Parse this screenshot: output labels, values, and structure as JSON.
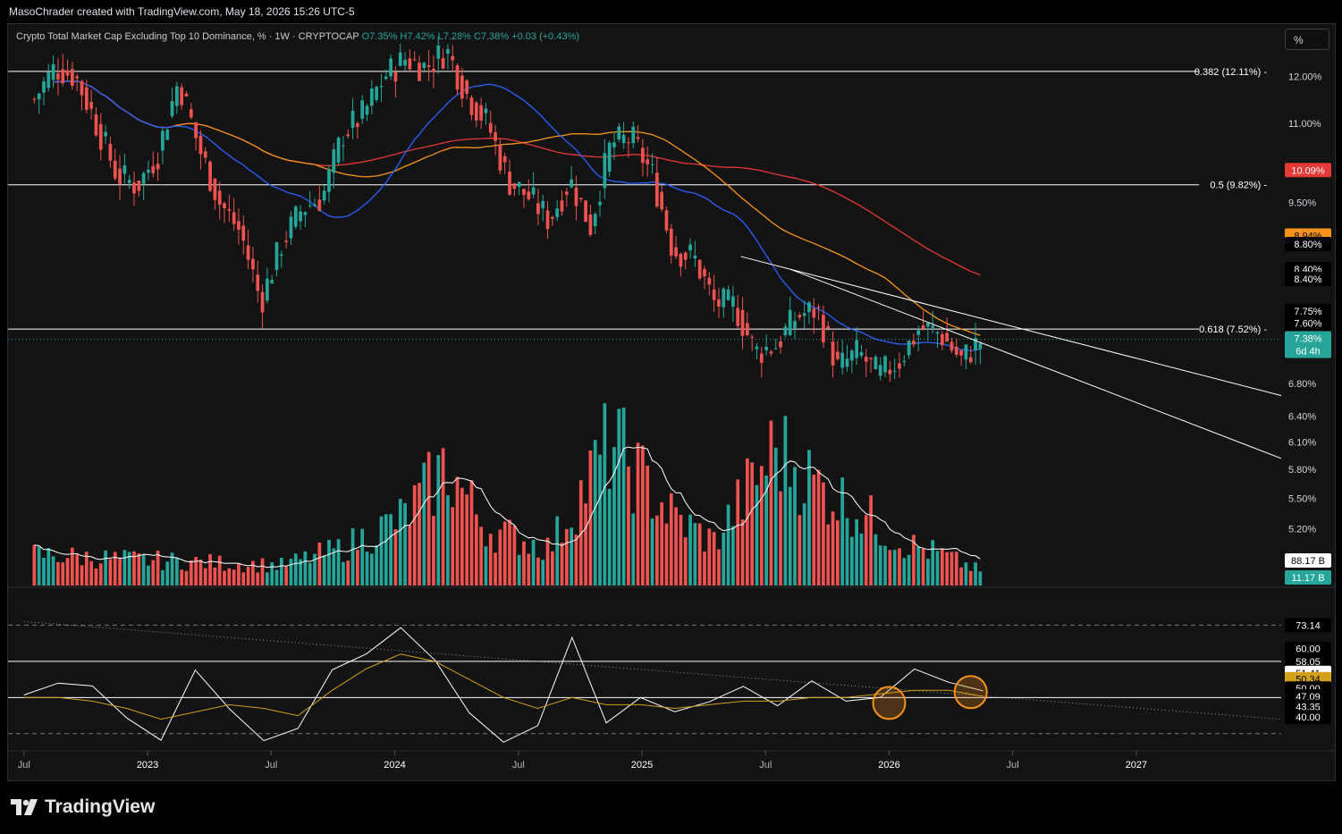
{
  "header": {
    "text": "MasoChrader created with TradingView.com, May 18, 2026 15:26 UTC-5"
  },
  "symbol_line": {
    "name": "Crypto Total Market Cap Excluding Top 10 Dominance, % · 1W · CRYPTOCAP",
    "open": "O7.35%",
    "high": "H7.42%",
    "low": "L7.28%",
    "close": "C7.38%",
    "change": "+0.03 (+0.43%)"
  },
  "toolbar": {
    "scale_button": "%"
  },
  "brand": {
    "name": "TradingView"
  },
  "colors": {
    "up": "#26a69a",
    "down": "#ef5350",
    "ma_blue": "#2962ff",
    "ma_orange": "#f7931a",
    "ma_red": "#e53935",
    "volume_ma": "#ffffff",
    "rsi": "#ffffff",
    "rsi_ma": "#d4a017",
    "highlight_circle": "#f7931a"
  },
  "chart_data": [
    {
      "type": "candlestick",
      "title": "Crypto Total Market Cap Excluding Top 10 Dominance, % · 1W · CRYPTOCAP",
      "y_unit": "%",
      "y_scale": "log",
      "ylim": [
        5.0,
        13.0
      ],
      "x_ticks": [
        "Jul",
        "2023",
        "Jul",
        "2024",
        "Jul",
        "2025",
        "Jul",
        "2026",
        "Jul",
        "2027"
      ],
      "y_ticks": [
        "12.00%",
        "11.00%",
        "9.50%",
        "6.80%",
        "6.40%",
        "6.10%",
        "5.80%",
        "5.50%",
        "5.20%"
      ],
      "price_labels": [
        "8.80%",
        "8.40%",
        "8.40%",
        "7.75%",
        "7.60%"
      ],
      "countdown": "6d 4h",
      "last_close": "7.38%",
      "fib_levels": [
        {
          "label": "0.382 (12.11%)",
          "value": 12.11
        },
        {
          "label": "0.5 (9.82%)",
          "value": 9.82
        },
        {
          "label": "0.618 (7.52%)",
          "value": 7.52
        }
      ],
      "moving_averages": [
        {
          "color_key": "ma_red",
          "last": "10.09%"
        },
        {
          "color_key": "ma_orange",
          "last": "8.94%"
        },
        {
          "color_key": "ma_blue",
          "last": "7.73%"
        }
      ],
      "close_series": [
        {
          "x": "2022-07",
          "y": 11.5
        },
        {
          "x": "2022-08",
          "y": 12.2
        },
        {
          "x": "2022-09",
          "y": 12.0
        },
        {
          "x": "2022-10",
          "y": 11.0
        },
        {
          "x": "2022-11",
          "y": 10.0
        },
        {
          "x": "2022-12",
          "y": 9.8
        },
        {
          "x": "2023-01",
          "y": 10.4
        },
        {
          "x": "2023-02",
          "y": 11.9
        },
        {
          "x": "2023-03",
          "y": 10.5
        },
        {
          "x": "2023-04",
          "y": 9.5
        },
        {
          "x": "2023-05",
          "y": 9.0
        },
        {
          "x": "2023-06",
          "y": 7.9
        },
        {
          "x": "2023-07",
          "y": 8.8
        },
        {
          "x": "2023-08",
          "y": 9.4
        },
        {
          "x": "2023-09",
          "y": 9.6
        },
        {
          "x": "2023-10",
          "y": 10.8
        },
        {
          "x": "2023-11",
          "y": 11.2
        },
        {
          "x": "2023-12",
          "y": 12.0
        },
        {
          "x": "2024-01",
          "y": 12.4
        },
        {
          "x": "2024-02",
          "y": 12.2
        },
        {
          "x": "2024-03",
          "y": 12.6
        },
        {
          "x": "2024-04",
          "y": 11.6
        },
        {
          "x": "2024-05",
          "y": 11.0
        },
        {
          "x": "2024-06",
          "y": 9.9
        },
        {
          "x": "2024-07",
          "y": 9.6
        },
        {
          "x": "2024-08",
          "y": 9.2
        },
        {
          "x": "2024-09",
          "y": 9.9
        },
        {
          "x": "2024-10",
          "y": 9.1
        },
        {
          "x": "2024-11",
          "y": 10.6
        },
        {
          "x": "2024-12",
          "y": 10.7
        },
        {
          "x": "2025-01",
          "y": 10.0
        },
        {
          "x": "2025-02",
          "y": 8.7
        },
        {
          "x": "2025-03",
          "y": 8.6
        },
        {
          "x": "2025-04",
          "y": 7.9
        },
        {
          "x": "2025-05",
          "y": 7.85
        },
        {
          "x": "2025-06",
          "y": 7.2
        },
        {
          "x": "2025-07",
          "y": 7.3
        },
        {
          "x": "2025-08",
          "y": 7.7
        },
        {
          "x": "2025-09",
          "y": 7.8
        },
        {
          "x": "2025-10",
          "y": 7.0
        },
        {
          "x": "2025-11",
          "y": 7.2
        },
        {
          "x": "2025-12",
          "y": 6.9
        },
        {
          "x": "2026-01",
          "y": 7.1
        },
        {
          "x": "2026-02",
          "y": 7.55
        },
        {
          "x": "2026-03",
          "y": 7.45
        },
        {
          "x": "2026-04",
          "y": 7.1
        },
        {
          "x": "2026-05",
          "y": 7.38
        }
      ]
    },
    {
      "type": "bar",
      "title": "Volume",
      "last_values": [
        "88.17 B",
        "11.17 B"
      ],
      "series": [
        {
          "x": "2022-07",
          "y": 25
        },
        {
          "x": "2022-10",
          "y": 22
        },
        {
          "x": "2023-01",
          "y": 20
        },
        {
          "x": "2023-04",
          "y": 18
        },
        {
          "x": "2023-07",
          "y": 16
        },
        {
          "x": "2023-10",
          "y": 30
        },
        {
          "x": "2024-01",
          "y": 55
        },
        {
          "x": "2024-03",
          "y": 95
        },
        {
          "x": "2024-05",
          "y": 45
        },
        {
          "x": "2024-08",
          "y": 30
        },
        {
          "x": "2024-11",
          "y": 115
        },
        {
          "x": "2024-12",
          "y": 95
        },
        {
          "x": "2025-02",
          "y": 55
        },
        {
          "x": "2025-04",
          "y": 35
        },
        {
          "x": "2025-06",
          "y": 85
        },
        {
          "x": "2025-07",
          "y": 110
        },
        {
          "x": "2025-09",
          "y": 80
        },
        {
          "x": "2025-11",
          "y": 60
        },
        {
          "x": "2026-01",
          "y": 35
        },
        {
          "x": "2026-03",
          "y": 25
        },
        {
          "x": "2026-05",
          "y": 11.17
        }
      ]
    },
    {
      "type": "line",
      "title": "RSI",
      "y_ticks": [
        "73.14",
        "60.00",
        "58.05",
        "51.41",
        "50.34",
        "50.00",
        "47.09",
        "43.35",
        "40.00"
      ],
      "levels": [
        70,
        60,
        50,
        40,
        30
      ],
      "series": [
        {
          "name": "RSI",
          "values": [
            48,
            55,
            52,
            44,
            37,
            56,
            47,
            38,
            44,
            60,
            64,
            72,
            58,
            48,
            40,
            44,
            65,
            42,
            50,
            46,
            51,
            55,
            46,
            52,
            48,
            53,
            58,
            55,
            51.41
          ]
        },
        {
          "name": "RSI MA",
          "values": [
            50,
            50,
            49,
            47,
            44,
            46,
            48,
            47,
            45,
            52,
            58,
            62,
            60,
            55,
            50,
            47,
            50,
            48,
            48,
            47,
            48,
            49,
            49,
            50,
            50,
            51,
            52,
            52,
            50.34
          ]
        }
      ]
    }
  ]
}
